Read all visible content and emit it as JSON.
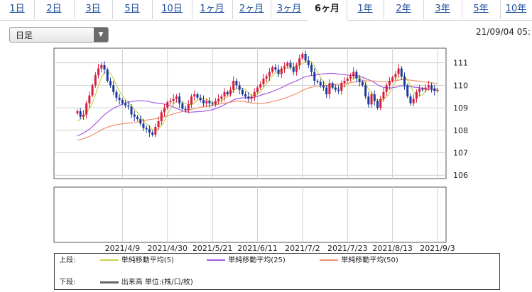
{
  "tabs": [
    {
      "label": "1日"
    },
    {
      "label": "2日"
    },
    {
      "label": "3日"
    },
    {
      "label": "5日"
    },
    {
      "label": "10日"
    },
    {
      "label": "1ヶ月"
    },
    {
      "label": "2ヶ月"
    },
    {
      "label": "3ヶ月"
    },
    {
      "label": "6ヶ月",
      "active": true
    },
    {
      "label": "1年"
    },
    {
      "label": "2年"
    },
    {
      "label": "3年"
    },
    {
      "label": "5年"
    },
    {
      "label": "10年"
    }
  ],
  "period_select": {
    "value": "日足"
  },
  "timestamp": "21/09/04 05:",
  "legend": {
    "upper_label": "上段:",
    "lower_label": "下段:",
    "ma5": "単純移動平均(5)",
    "ma25": "単純移動平均(25)",
    "ma50": "単純移動平均(50)",
    "volume": "出来高 単位:(株/口/枚)"
  },
  "colors": {
    "up": "#d81b3c",
    "down": "#1a3a9c",
    "ma5": "#c8d24a",
    "ma25": "#a55ce0",
    "ma50": "#f0906a",
    "volume": "#666666"
  },
  "chart_data": {
    "type": "candlestick",
    "y_ticks": [
      106,
      107,
      108,
      109,
      110,
      111
    ],
    "ylim": [
      105.85,
      111.65
    ],
    "x_labels": [
      "2021/4/9",
      "2021/4/30",
      "2021/5/21",
      "2021/6/11",
      "2021/7/2",
      "2021/7/23",
      "2021/8/13",
      "2021/9/3"
    ],
    "x_label_index": [
      15,
      30,
      45,
      60,
      75,
      90,
      105,
      120
    ],
    "n_days": 121,
    "closes": [
      108.85,
      108.6,
      108.7,
      109.2,
      109.55,
      110.0,
      110.45,
      110.75,
      110.9,
      110.7,
      110.2,
      110.0,
      109.7,
      109.45,
      109.35,
      109.2,
      109.1,
      109.05,
      108.7,
      108.6,
      108.5,
      108.3,
      108.1,
      108.05,
      107.9,
      107.8,
      108.15,
      108.4,
      108.8,
      109.0,
      109.25,
      109.3,
      109.4,
      109.5,
      109.2,
      108.95,
      108.9,
      109.15,
      109.5,
      109.6,
      109.45,
      109.35,
      109.2,
      109.3,
      109.2,
      109.15,
      109.3,
      109.4,
      109.5,
      109.7,
      109.6,
      109.8,
      110.2,
      110.0,
      109.8,
      109.6,
      109.5,
      109.4,
      109.5,
      109.7,
      109.9,
      110.05,
      110.3,
      110.4,
      110.6,
      110.8,
      110.7,
      110.5,
      110.75,
      110.85,
      111.0,
      110.8,
      110.6,
      110.9,
      111.2,
      111.4,
      111.1,
      110.9,
      110.6,
      110.2,
      110.15,
      110.0,
      109.9,
      109.6,
      110.1,
      109.9,
      109.8,
      109.75,
      110.1,
      110.2,
      110.3,
      110.4,
      110.6,
      110.3,
      110.15,
      110.0,
      109.5,
      109.15,
      109.6,
      109.3,
      109.0,
      109.4,
      109.7,
      110.0,
      110.2,
      110.35,
      110.5,
      110.75,
      110.4,
      110.0,
      109.5,
      109.2,
      109.4,
      109.7,
      109.85,
      109.8,
      109.9,
      110.0,
      109.85,
      109.75,
      109.8
    ],
    "series": [
      {
        "name": "単純移動平均(5)",
        "period": 5
      },
      {
        "name": "単純移動平均(25)",
        "period": 25
      },
      {
        "name": "単純移動平均(50)",
        "period": 50
      }
    ],
    "volume": []
  }
}
